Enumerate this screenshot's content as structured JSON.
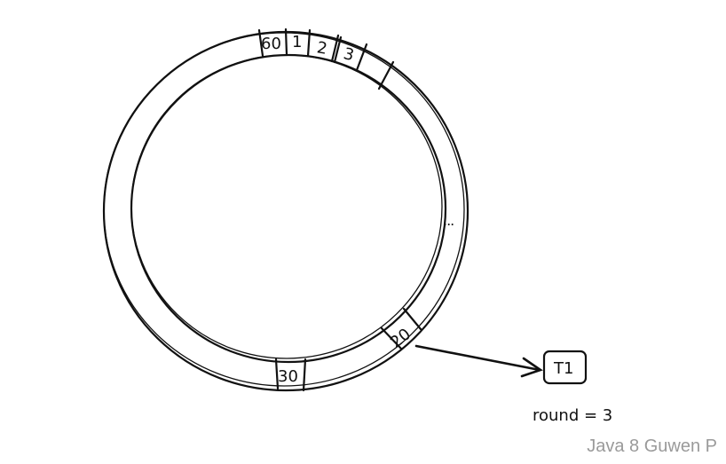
{
  "wheel": {
    "slot_labels": [
      "60",
      "1",
      "2",
      "3",
      "...",
      "20",
      "30"
    ]
  },
  "task": {
    "label": "T1"
  },
  "round_label": "round = 3",
  "watermark": "Java 8 Guwen P"
}
